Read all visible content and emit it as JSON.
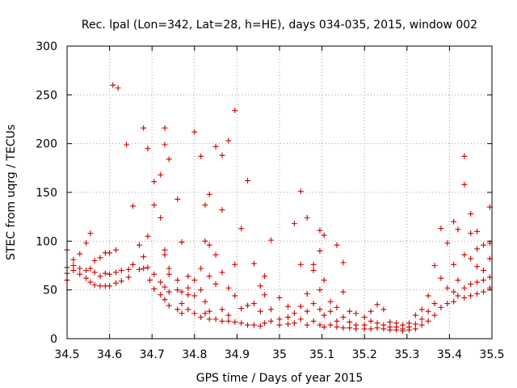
{
  "chart_data": {
    "type": "scatter",
    "title": "Rec. lpal (Lon=342, Lat=28, h=HE), days 034-035, 2015, window 002",
    "xlabel": "GPS time / Days of year 2015",
    "ylabel": "STEC from uqrg / TECUs",
    "xlim": [
      34.5,
      35.5
    ],
    "ylim": [
      0,
      300
    ],
    "xticks": [
      34.5,
      34.6,
      34.7,
      34.8,
      34.9,
      35,
      35.1,
      35.2,
      35.3,
      35.4,
      35.5
    ],
    "xtick_labels": [
      "34.5",
      "34.6",
      "34.7",
      "34.8",
      "34.9",
      "35",
      "35.1",
      "35.2",
      "35.3",
      "35.4",
      "35.5"
    ],
    "yticks": [
      0,
      50,
      100,
      150,
      200,
      250,
      300
    ],
    "ytick_labels": [
      "0",
      "50",
      "100",
      "150",
      "200",
      "250",
      "300"
    ],
    "grid": true,
    "marker": "+",
    "color": "#cc0000",
    "series": [
      {
        "name": "STEC",
        "points": [
          [
            34.5,
            60
          ],
          [
            34.5,
            67
          ],
          [
            34.5,
            73
          ],
          [
            34.5,
            91
          ],
          [
            34.515,
            70
          ],
          [
            34.515,
            75
          ],
          [
            34.515,
            81
          ],
          [
            34.53,
            66
          ],
          [
            34.53,
            72
          ],
          [
            34.53,
            87
          ],
          [
            34.545,
            62
          ],
          [
            34.545,
            70
          ],
          [
            34.545,
            98
          ],
          [
            34.555,
            58
          ],
          [
            34.555,
            72
          ],
          [
            34.555,
            108
          ],
          [
            34.565,
            55
          ],
          [
            34.565,
            68
          ],
          [
            34.565,
            80
          ],
          [
            34.578,
            54
          ],
          [
            34.578,
            64
          ],
          [
            34.578,
            83
          ],
          [
            34.59,
            54
          ],
          [
            34.59,
            67
          ],
          [
            34.59,
            88
          ],
          [
            34.6,
            54
          ],
          [
            34.6,
            66
          ],
          [
            34.6,
            88
          ],
          [
            34.608,
            260
          ],
          [
            34.62,
            257
          ],
          [
            34.615,
            57
          ],
          [
            34.615,
            68
          ],
          [
            34.615,
            91
          ],
          [
            34.628,
            59
          ],
          [
            34.628,
            70
          ],
          [
            34.64,
            199
          ],
          [
            34.645,
            63
          ],
          [
            34.645,
            71
          ],
          [
            34.655,
            136
          ],
          [
            34.655,
            76
          ],
          [
            34.67,
            96
          ],
          [
            34.67,
            71
          ],
          [
            34.68,
            216
          ],
          [
            34.68,
            84
          ],
          [
            34.68,
            72
          ],
          [
            34.69,
            195
          ],
          [
            34.69,
            105
          ],
          [
            34.69,
            73
          ],
          [
            34.695,
            60
          ],
          [
            34.705,
            161
          ],
          [
            34.705,
            137
          ],
          [
            34.705,
            66
          ],
          [
            34.705,
            51
          ],
          [
            34.72,
            168
          ],
          [
            34.72,
            124
          ],
          [
            34.72,
            58
          ],
          [
            34.72,
            45
          ],
          [
            34.73,
            216
          ],
          [
            34.73,
            199
          ],
          [
            34.73,
            91
          ],
          [
            34.73,
            86
          ],
          [
            34.73,
            53
          ],
          [
            34.73,
            40
          ],
          [
            34.74,
            184
          ],
          [
            34.74,
            72
          ],
          [
            34.74,
            66
          ],
          [
            34.74,
            48
          ],
          [
            34.74,
            34
          ],
          [
            34.76,
            143
          ],
          [
            34.76,
            60
          ],
          [
            34.76,
            50
          ],
          [
            34.76,
            30
          ],
          [
            34.77,
            99
          ],
          [
            34.77,
            48
          ],
          [
            34.77,
            36
          ],
          [
            34.77,
            26
          ],
          [
            34.785,
            64
          ],
          [
            34.785,
            52
          ],
          [
            34.785,
            45
          ],
          [
            34.785,
            30
          ],
          [
            34.8,
            212
          ],
          [
            34.8,
            60
          ],
          [
            34.8,
            44
          ],
          [
            34.8,
            26
          ],
          [
            34.815,
            187
          ],
          [
            34.815,
            72
          ],
          [
            34.815,
            50
          ],
          [
            34.815,
            22
          ],
          [
            34.825,
            137
          ],
          [
            34.825,
            100
          ],
          [
            34.825,
            38
          ],
          [
            34.825,
            26
          ],
          [
            34.835,
            148
          ],
          [
            34.835,
            64
          ],
          [
            34.835,
            96
          ],
          [
            34.835,
            28
          ],
          [
            34.835,
            20
          ],
          [
            34.85,
            197
          ],
          [
            34.85,
            86
          ],
          [
            34.85,
            56
          ],
          [
            34.85,
            20
          ],
          [
            34.865,
            188
          ],
          [
            34.865,
            132
          ],
          [
            34.865,
            68
          ],
          [
            34.865,
            30
          ],
          [
            34.865,
            18
          ],
          [
            34.88,
            203
          ],
          [
            34.88,
            52
          ],
          [
            34.88,
            24
          ],
          [
            34.88,
            18
          ],
          [
            34.895,
            234
          ],
          [
            34.895,
            76
          ],
          [
            34.895,
            44
          ],
          [
            34.895,
            17
          ],
          [
            34.91,
            113
          ],
          [
            34.91,
            31
          ],
          [
            34.91,
            16
          ],
          [
            34.925,
            162
          ],
          [
            34.925,
            34
          ],
          [
            34.925,
            14
          ],
          [
            34.94,
            77
          ],
          [
            34.94,
            36
          ],
          [
            34.94,
            14
          ],
          [
            34.955,
            54
          ],
          [
            34.955,
            28
          ],
          [
            34.955,
            13
          ],
          [
            34.965,
            64
          ],
          [
            34.965,
            45
          ],
          [
            34.965,
            16
          ],
          [
            34.98,
            101
          ],
          [
            34.98,
            30
          ],
          [
            34.98,
            18
          ],
          [
            35.0,
            42
          ],
          [
            35.0,
            20
          ],
          [
            35.0,
            14
          ],
          [
            35.02,
            33
          ],
          [
            35.02,
            22
          ],
          [
            35.02,
            15
          ],
          [
            35.035,
            118
          ],
          [
            35.035,
            26
          ],
          [
            35.035,
            16
          ],
          [
            35.05,
            151
          ],
          [
            35.05,
            76
          ],
          [
            35.05,
            33
          ],
          [
            35.05,
            20
          ],
          [
            35.065,
            124
          ],
          [
            35.065,
            46
          ],
          [
            35.065,
            28
          ],
          [
            35.065,
            14
          ],
          [
            35.08,
            76
          ],
          [
            35.08,
            70
          ],
          [
            35.08,
            36
          ],
          [
            35.08,
            18
          ],
          [
            35.095,
            111
          ],
          [
            35.095,
            90
          ],
          [
            35.095,
            50
          ],
          [
            35.095,
            30
          ],
          [
            35.095,
            14
          ],
          [
            35.105,
            106
          ],
          [
            35.105,
            60
          ],
          [
            35.105,
            24
          ],
          [
            35.105,
            12
          ],
          [
            35.12,
            38
          ],
          [
            35.12,
            28
          ],
          [
            35.12,
            14
          ],
          [
            35.135,
            96
          ],
          [
            35.135,
            32
          ],
          [
            35.135,
            18
          ],
          [
            35.135,
            12
          ],
          [
            35.15,
            78
          ],
          [
            35.15,
            48
          ],
          [
            35.15,
            22
          ],
          [
            35.15,
            11
          ],
          [
            35.165,
            28
          ],
          [
            35.165,
            17
          ],
          [
            35.165,
            11
          ],
          [
            35.18,
            26
          ],
          [
            35.18,
            14
          ],
          [
            35.18,
            10
          ],
          [
            35.2,
            22
          ],
          [
            35.2,
            14
          ],
          [
            35.2,
            10
          ],
          [
            35.215,
            28
          ],
          [
            35.215,
            18
          ],
          [
            35.215,
            10
          ],
          [
            35.23,
            35
          ],
          [
            35.23,
            16
          ],
          [
            35.23,
            11
          ],
          [
            35.245,
            30
          ],
          [
            35.245,
            14
          ],
          [
            35.245,
            10
          ],
          [
            35.26,
            17
          ],
          [
            35.26,
            12
          ],
          [
            35.26,
            9
          ],
          [
            35.275,
            16
          ],
          [
            35.275,
            12
          ],
          [
            35.275,
            9
          ],
          [
            35.29,
            14
          ],
          [
            35.29,
            10
          ],
          [
            35.29,
            8
          ],
          [
            35.305,
            16
          ],
          [
            35.305,
            12
          ],
          [
            35.305,
            9
          ],
          [
            35.32,
            24
          ],
          [
            35.32,
            15
          ],
          [
            35.32,
            10
          ],
          [
            35.335,
            30
          ],
          [
            35.335,
            20
          ],
          [
            35.335,
            14
          ],
          [
            35.35,
            44
          ],
          [
            35.35,
            28
          ],
          [
            35.35,
            18
          ],
          [
            35.365,
            75
          ],
          [
            35.365,
            36
          ],
          [
            35.365,
            24
          ],
          [
            35.38,
            113
          ],
          [
            35.38,
            62
          ],
          [
            35.38,
            32
          ],
          [
            35.395,
            98
          ],
          [
            35.395,
            52
          ],
          [
            35.395,
            36
          ],
          [
            35.41,
            120
          ],
          [
            35.41,
            76
          ],
          [
            35.41,
            48
          ],
          [
            35.41,
            38
          ],
          [
            35.42,
            112
          ],
          [
            35.42,
            60
          ],
          [
            35.42,
            44
          ],
          [
            35.435,
            187
          ],
          [
            35.435,
            158
          ],
          [
            35.435,
            86
          ],
          [
            35.435,
            52
          ],
          [
            35.435,
            42
          ],
          [
            35.45,
            128
          ],
          [
            35.45,
            108
          ],
          [
            35.45,
            82
          ],
          [
            35.45,
            56
          ],
          [
            35.45,
            44
          ],
          [
            35.465,
            110
          ],
          [
            35.465,
            92
          ],
          [
            35.465,
            74
          ],
          [
            35.465,
            58
          ],
          [
            35.465,
            46
          ],
          [
            35.48,
            96
          ],
          [
            35.48,
            70
          ],
          [
            35.48,
            60
          ],
          [
            35.48,
            48
          ],
          [
            35.495,
            135
          ],
          [
            35.495,
            98
          ],
          [
            35.495,
            82
          ],
          [
            35.495,
            63
          ],
          [
            35.495,
            52
          ]
        ]
      }
    ]
  }
}
